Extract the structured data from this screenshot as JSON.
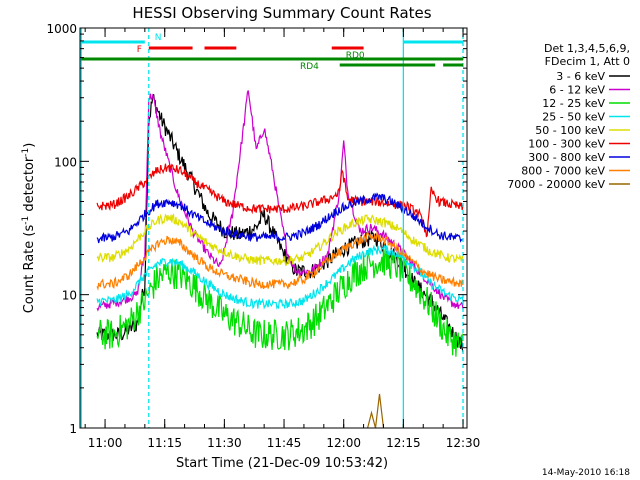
{
  "chart_data": {
    "type": "line",
    "title": "HESSI Observing Summary Count Rates",
    "xlabel": "Start Time (21-Dec-09 10:53:42)",
    "ylabel": "Count Rate (s",
    "ylabel_sup1": "-1",
    "ylabel_mid": " detector",
    "ylabel_sup2": "-1",
    "ylabel_end": ")",
    "yscale": "log",
    "xlim": [
      "10:53:42",
      "12:31:00"
    ],
    "ylim": [
      1,
      1000
    ],
    "x_ticks": [
      "11:00",
      "11:15",
      "11:30",
      "11:45",
      "12:00",
      "12:15",
      "12:30"
    ],
    "y_ticks": [
      {
        "v": 1,
        "label": "1"
      },
      {
        "v": 10,
        "label": "10"
      },
      {
        "v": 100,
        "label": "100"
      },
      {
        "v": 1000,
        "label": "1000"
      }
    ],
    "legend_header": [
      "Det 1,3,4,5,6,9,",
      "FDecim 1, Att 0"
    ],
    "series": [
      {
        "name": "3 - 6 keV",
        "color": "#000000",
        "points": [
          [
            "10:58",
            5
          ],
          [
            "11:04",
            5
          ],
          [
            "11:08",
            6
          ],
          [
            "11:10",
            12
          ],
          [
            "11:11",
            200
          ],
          [
            "11:12",
            300
          ],
          [
            "11:14",
            210
          ],
          [
            "11:18",
            120
          ],
          [
            "11:22",
            70
          ],
          [
            "11:26",
            40
          ],
          [
            "11:30",
            30
          ],
          [
            "11:34",
            28
          ],
          [
            "11:38",
            32
          ],
          [
            "11:40",
            40
          ],
          [
            "11:42",
            30
          ],
          [
            "11:45",
            20
          ],
          [
            "11:48",
            15
          ],
          [
            "11:52",
            15
          ],
          [
            "11:56",
            18
          ],
          [
            "12:00",
            22
          ],
          [
            "12:04",
            25
          ],
          [
            "12:08",
            27
          ],
          [
            "12:11",
            22
          ],
          [
            "12:14",
            18
          ],
          [
            "12:18",
            12
          ],
          [
            "12:22",
            9
          ],
          [
            "12:26",
            6
          ],
          [
            "12:30",
            4
          ]
        ]
      },
      {
        "name": "6 - 12 keV",
        "color": "#cc00cc",
        "points": [
          [
            "10:58",
            8
          ],
          [
            "11:04",
            9
          ],
          [
            "11:08",
            10
          ],
          [
            "11:10",
            20
          ],
          [
            "11:11",
            300
          ],
          [
            "11:12",
            310
          ],
          [
            "11:14",
            160
          ],
          [
            "11:18",
            60
          ],
          [
            "11:22",
            30
          ],
          [
            "11:26",
            20
          ],
          [
            "11:29",
            16
          ],
          [
            "11:32",
            40
          ],
          [
            "11:35",
            200
          ],
          [
            "11:36",
            350
          ],
          [
            "11:38",
            120
          ],
          [
            "11:40",
            180
          ],
          [
            "11:42",
            90
          ],
          [
            "11:44",
            40
          ],
          [
            "11:46",
            20
          ],
          [
            "11:48",
            15
          ],
          [
            "11:52",
            15
          ],
          [
            "11:56",
            20
          ],
          [
            "11:59",
            60
          ],
          [
            "12:00",
            140
          ],
          [
            "12:01",
            60
          ],
          [
            "12:04",
            30
          ],
          [
            "12:07",
            32
          ],
          [
            "12:10",
            28
          ],
          [
            "12:14",
            22
          ],
          [
            "12:18",
            16
          ],
          [
            "12:22",
            12
          ],
          [
            "12:26",
            9
          ],
          [
            "12:30",
            8
          ]
        ]
      },
      {
        "name": "12 - 25 keV",
        "color": "#00dd00",
        "points": [
          [
            "10:58",
            5
          ],
          [
            "11:02",
            5
          ],
          [
            "11:06",
            6
          ],
          [
            "11:10",
            9
          ],
          [
            "11:13",
            13
          ],
          [
            "11:16",
            15
          ],
          [
            "11:19",
            14
          ],
          [
            "11:22",
            12
          ],
          [
            "11:26",
            9
          ],
          [
            "11:30",
            7
          ],
          [
            "11:34",
            6
          ],
          [
            "11:38",
            5
          ],
          [
            "11:42",
            5
          ],
          [
            "11:46",
            5
          ],
          [
            "11:50",
            5.5
          ],
          [
            "11:54",
            7
          ],
          [
            "11:58",
            10
          ],
          [
            "12:02",
            14
          ],
          [
            "12:06",
            17
          ],
          [
            "12:10",
            18
          ],
          [
            "12:14",
            16
          ],
          [
            "12:18",
            12
          ],
          [
            "12:22",
            8
          ],
          [
            "12:26",
            5
          ],
          [
            "12:30",
            4
          ]
        ]
      },
      {
        "name": "25 - 50 keV",
        "color": "#00e5ee",
        "points": [
          [
            "10:58",
            9
          ],
          [
            "11:02",
            9
          ],
          [
            "11:06",
            10
          ],
          [
            "11:10",
            14
          ],
          [
            "11:13",
            17
          ],
          [
            "11:16",
            18
          ],
          [
            "11:19",
            17
          ],
          [
            "11:22",
            15
          ],
          [
            "11:26",
            12
          ],
          [
            "11:30",
            10
          ],
          [
            "11:34",
            9
          ],
          [
            "11:38",
            8.5
          ],
          [
            "11:42",
            8.5
          ],
          [
            "11:46",
            8.5
          ],
          [
            "11:50",
            9
          ],
          [
            "11:54",
            11
          ],
          [
            "11:58",
            14
          ],
          [
            "12:02",
            18
          ],
          [
            "12:06",
            21
          ],
          [
            "12:10",
            22
          ],
          [
            "12:14",
            20
          ],
          [
            "12:18",
            16
          ],
          [
            "12:22",
            12
          ],
          [
            "12:26",
            10
          ],
          [
            "12:30",
            9
          ]
        ]
      },
      {
        "name": "50 - 100 keV",
        "color": "#dddd00",
        "points": [
          [
            "10:58",
            19
          ],
          [
            "11:02",
            19
          ],
          [
            "11:06",
            22
          ],
          [
            "11:10",
            30
          ],
          [
            "11:13",
            36
          ],
          [
            "11:16",
            38
          ],
          [
            "11:19",
            35
          ],
          [
            "11:22",
            29
          ],
          [
            "11:26",
            24
          ],
          [
            "11:30",
            21
          ],
          [
            "11:34",
            19
          ],
          [
            "11:38",
            18
          ],
          [
            "11:42",
            18
          ],
          [
            "11:46",
            18
          ],
          [
            "11:50",
            19
          ],
          [
            "11:54",
            23
          ],
          [
            "11:58",
            29
          ],
          [
            "12:02",
            34
          ],
          [
            "12:06",
            37
          ],
          [
            "12:10",
            35
          ],
          [
            "12:14",
            31
          ],
          [
            "12:18",
            25
          ],
          [
            "12:22",
            21
          ],
          [
            "12:26",
            19
          ],
          [
            "12:30",
            18
          ]
        ]
      },
      {
        "name": "100 - 300 keV",
        "color": "#ee0000",
        "points": [
          [
            "10:58",
            46
          ],
          [
            "11:02",
            47
          ],
          [
            "11:06",
            55
          ],
          [
            "11:10",
            70
          ],
          [
            "11:13",
            85
          ],
          [
            "11:16",
            90
          ],
          [
            "11:19",
            85
          ],
          [
            "11:22",
            72
          ],
          [
            "11:26",
            60
          ],
          [
            "11:30",
            50
          ],
          [
            "11:34",
            46
          ],
          [
            "11:38",
            44
          ],
          [
            "11:42",
            44
          ],
          [
            "11:46",
            44
          ],
          [
            "11:50",
            46
          ],
          [
            "11:54",
            50
          ],
          [
            "11:56",
            52
          ],
          [
            "11:59",
            58
          ],
          [
            "11:59:30",
            90
          ],
          [
            "12:01",
            52
          ],
          [
            "12:04",
            50
          ],
          [
            "12:08",
            50
          ],
          [
            "12:12",
            48
          ],
          [
            "12:16",
            46
          ],
          [
            "12:19",
            40
          ],
          [
            "12:21",
            28
          ],
          [
            "12:22",
            60
          ],
          [
            "12:24",
            50
          ],
          [
            "12:30",
            45
          ]
        ]
      },
      {
        "name": "300 - 800 keV",
        "color": "#0000dd",
        "points": [
          [
            "10:58",
            26
          ],
          [
            "11:02",
            27
          ],
          [
            "11:06",
            30
          ],
          [
            "11:10",
            40
          ],
          [
            "11:13",
            48
          ],
          [
            "11:16",
            50
          ],
          [
            "11:19",
            47
          ],
          [
            "11:22",
            40
          ],
          [
            "11:26",
            34
          ],
          [
            "11:30",
            30
          ],
          [
            "11:34",
            28
          ],
          [
            "11:38",
            27
          ],
          [
            "11:42",
            27
          ],
          [
            "11:46",
            27
          ],
          [
            "11:50",
            29
          ],
          [
            "11:54",
            34
          ],
          [
            "11:58",
            42
          ],
          [
            "12:02",
            48
          ],
          [
            "12:06",
            52
          ],
          [
            "12:09",
            54
          ],
          [
            "12:12",
            50
          ],
          [
            "12:16",
            42
          ],
          [
            "12:20",
            34
          ],
          [
            "12:24",
            28
          ],
          [
            "12:30",
            26
          ]
        ]
      },
      {
        "name": "800 - 7000 keV",
        "color": "#ff7f00",
        "points": [
          [
            "10:58",
            12
          ],
          [
            "11:02",
            12
          ],
          [
            "11:06",
            14
          ],
          [
            "11:10",
            19
          ],
          [
            "11:13",
            24
          ],
          [
            "11:16",
            26
          ],
          [
            "11:19",
            24
          ],
          [
            "11:22",
            20
          ],
          [
            "11:26",
            16
          ],
          [
            "11:30",
            14
          ],
          [
            "11:34",
            13
          ],
          [
            "11:38",
            12
          ],
          [
            "11:42",
            12
          ],
          [
            "11:46",
            12
          ],
          [
            "11:50",
            13
          ],
          [
            "11:54",
            16
          ],
          [
            "11:58",
            20
          ],
          [
            "12:02",
            24
          ],
          [
            "12:06",
            27
          ],
          [
            "12:09",
            27
          ],
          [
            "12:12",
            24
          ],
          [
            "12:16",
            19
          ],
          [
            "12:20",
            15
          ],
          [
            "12:24",
            13
          ],
          [
            "12:30",
            12
          ]
        ]
      },
      {
        "name": "7000 - 20000 keV",
        "color": "#996600",
        "points": [
          [
            "12:06",
            1
          ],
          [
            "12:07",
            1.3
          ],
          [
            "12:08",
            1
          ],
          [
            "12:09",
            1.8
          ],
          [
            "12:10",
            1
          ]
        ]
      }
    ],
    "flag_bars": [
      {
        "label": "N",
        "color": "#00e5ee",
        "segments": [
          [
            "10:54",
            "11:10"
          ],
          [
            "12:15",
            "12:30"
          ]
        ]
      },
      {
        "label": "F",
        "color": "#ee0000",
        "segments": [
          [
            "11:11",
            "11:22"
          ],
          [
            "11:25",
            "11:33"
          ],
          [
            "11:57",
            "12:05"
          ]
        ]
      },
      {
        "label": "RD0",
        "color": "#008800",
        "segments": [
          [
            "10:54",
            "12:30"
          ]
        ]
      },
      {
        "label": "RD4",
        "color": "#008800",
        "segments": [
          [
            "11:59",
            "12:23"
          ],
          [
            "12:25",
            "12:30"
          ]
        ]
      }
    ],
    "vlines": [
      {
        "t": "10:54",
        "style": "solid"
      },
      {
        "t": "11:11",
        "style": "dashed"
      },
      {
        "t": "12:15",
        "style": "solid"
      },
      {
        "t": "12:30",
        "style": "dashed"
      }
    ],
    "line_color": "#00e5ee",
    "grid": false,
    "legend_position": "right"
  },
  "footer_date": "14-May-2010 16:18"
}
